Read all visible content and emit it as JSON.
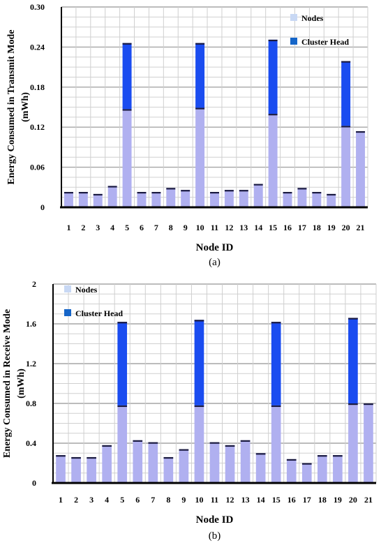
{
  "chart_data": [
    {
      "type": "bar",
      "stacked": true,
      "caption": "(a)",
      "xlabel": "Node ID",
      "ylabel": "Energy Consumed in Transmit Mode",
      "ylabel2": "(mWh)",
      "ylim": [
        0,
        0.3
      ],
      "yticks": [
        "0",
        "0.06",
        "0.12",
        "0.18",
        "0.24",
        "0.30"
      ],
      "grid": true,
      "legend_position": "top-right",
      "categories": [
        "1",
        "2",
        "3",
        "4",
        "5",
        "6",
        "7",
        "8",
        "9",
        "10",
        "11",
        "12",
        "13",
        "14",
        "15",
        "16",
        "17",
        "18",
        "19",
        "20",
        "21"
      ],
      "series": [
        {
          "name": "Nodes",
          "color": "#b0b0f0",
          "values": [
            0.023,
            0.023,
            0.02,
            0.032,
            0.147,
            0.023,
            0.023,
            0.029,
            0.026,
            0.149,
            0.023,
            0.026,
            0.026,
            0.035,
            0.14,
            0.023,
            0.029,
            0.023,
            0.02,
            0.122,
            0.114
          ]
        },
        {
          "name": "Cluster Head",
          "color": "#1a4cf0",
          "values": [
            0,
            0,
            0,
            0,
            0.099,
            0,
            0,
            0,
            0,
            0.097,
            0,
            0,
            0,
            0,
            0.111,
            0,
            0,
            0,
            0,
            0.097,
            0
          ]
        }
      ]
    },
    {
      "type": "bar",
      "stacked": true,
      "caption": "(b)",
      "xlabel": "Node ID",
      "ylabel": "Energy Consumed in Receive Mode",
      "ylabel2": "(mWh)",
      "ylim": [
        0,
        2
      ],
      "yticks": [
        "0",
        "0.4",
        "0.8",
        "1.2",
        "1.6",
        "2"
      ],
      "grid": true,
      "legend_position": "top-left",
      "categories": [
        "1",
        "2",
        "3",
        "4",
        "5",
        "6",
        "7",
        "8",
        "9",
        "10",
        "11",
        "12",
        "13",
        "14",
        "15",
        "16",
        "17",
        "18",
        "19",
        "20",
        "21"
      ],
      "series": [
        {
          "name": "Nodes",
          "color": "#b0b0f0",
          "values": [
            0.28,
            0.26,
            0.26,
            0.38,
            0.78,
            0.43,
            0.41,
            0.26,
            0.34,
            0.78,
            0.41,
            0.38,
            0.43,
            0.3,
            0.78,
            0.24,
            0.2,
            0.28,
            0.28,
            0.8,
            0.8
          ]
        },
        {
          "name": "Cluster Head",
          "color": "#1a4cf0",
          "values": [
            0,
            0,
            0,
            0,
            0.84,
            0,
            0,
            0,
            0,
            0.86,
            0,
            0,
            0,
            0,
            0.84,
            0,
            0,
            0,
            0,
            0.86,
            0
          ]
        }
      ]
    }
  ]
}
